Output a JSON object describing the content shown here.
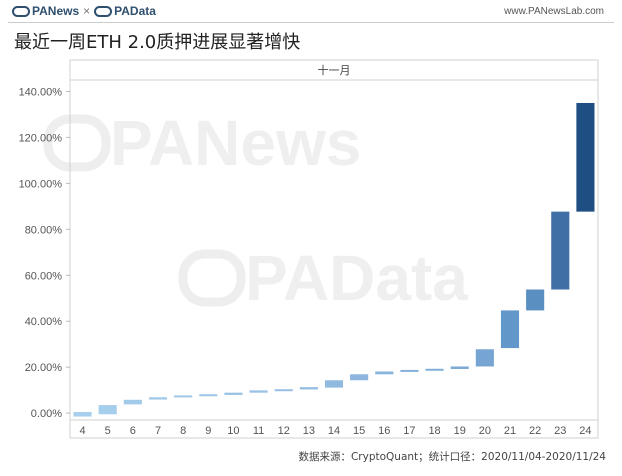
{
  "header": {
    "brand_panews": "PANews",
    "brand_sep": "×",
    "brand_padata": "PAData",
    "site": "www.PANewsLab.com"
  },
  "title": "最近一周ETH 2.0质押进展显著增快",
  "source": "数据来源：CryptoQuant；统计口径：2020/11/04-2020/11/24",
  "watermarks": [
    "PANews",
    "PAData"
  ],
  "chart_data": {
    "type": "waterfall",
    "month_header": "十一月",
    "categories": [
      "4",
      "5",
      "6",
      "7",
      "8",
      "9",
      "10",
      "11",
      "12",
      "13",
      "14",
      "15",
      "16",
      "17",
      "18",
      "19",
      "20",
      "21",
      "22",
      "23",
      "24"
    ],
    "ranges": [
      [
        -1.5,
        0.5
      ],
      [
        -0.5,
        3.5
      ],
      [
        3.8,
        5.8
      ],
      [
        5.9,
        6.9
      ],
      [
        6.9,
        7.7
      ],
      [
        7.6,
        8.2
      ],
      [
        7.9,
        8.9
      ],
      [
        8.9,
        9.9
      ],
      [
        9.7,
        10.4
      ],
      [
        10.3,
        11.3
      ],
      [
        11.1,
        14.3
      ],
      [
        14.3,
        16.9
      ],
      [
        16.9,
        18.1
      ],
      [
        18.0,
        18.8
      ],
      [
        18.5,
        19.3
      ],
      [
        19.2,
        20.3
      ],
      [
        20.3,
        27.8
      ],
      [
        28.3,
        44.7
      ],
      [
        44.7,
        53.8
      ],
      [
        53.8,
        87.7
      ],
      [
        87.7,
        135.0
      ]
    ],
    "colors": [
      "#a8d0ee",
      "#a5cdec",
      "#a2cbea",
      "#a0c9e9",
      "#9ec7e8",
      "#9cc5e7",
      "#9ac3e6",
      "#98c1e5",
      "#96bfe3",
      "#94bde2",
      "#90bae0",
      "#8cb6de",
      "#88b3dc",
      "#85b0da",
      "#82add8",
      "#7eaad6",
      "#77a5d3",
      "#6197c9",
      "#5a8fc2",
      "#3f6fa5",
      "#1f4f82"
    ],
    "ylim": [
      -3,
      145
    ],
    "yticks": [
      0,
      20,
      40,
      60,
      80,
      100,
      120,
      140
    ],
    "ytick_labels": [
      "0.00%",
      "20.00%",
      "40.00%",
      "60.00%",
      "80.00%",
      "100.00%",
      "120.00%",
      "140.00%"
    ],
    "grid": false
  }
}
